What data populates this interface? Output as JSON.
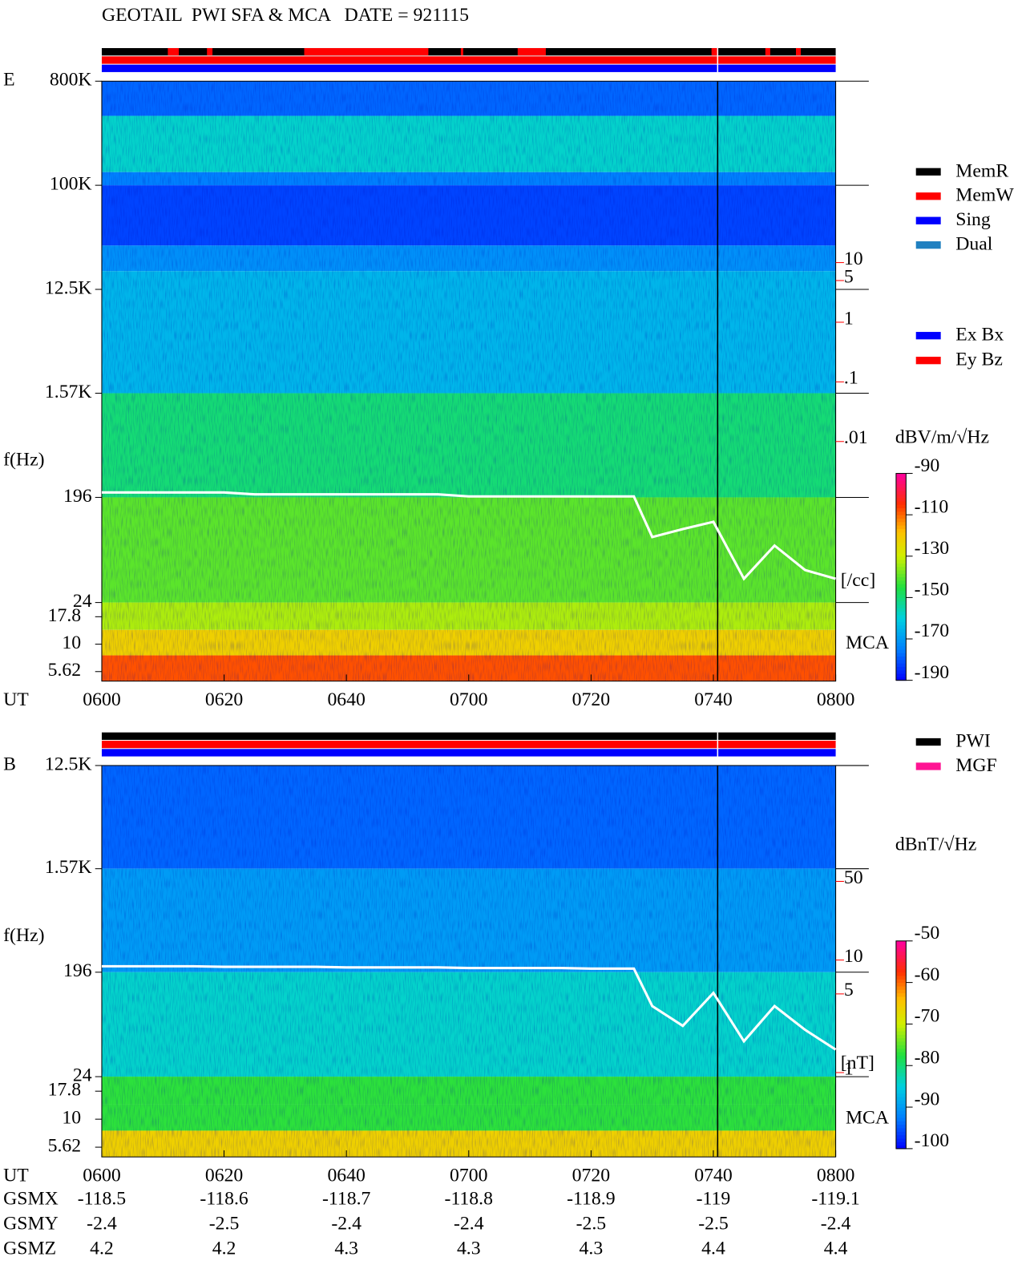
{
  "title": "GEOTAIL  PWI SFA & MCA   DATE = 921115",
  "chart_data": [
    {
      "type": "spectrogram",
      "panel_label": "E",
      "ylabel": "f(Hz)",
      "xlabel": "UT",
      "xlim": [
        360,
        480
      ],
      "xticks": [
        {
          "value": 360,
          "label": "0600"
        },
        {
          "value": 380,
          "label": "0620"
        },
        {
          "value": 400,
          "label": "0640"
        },
        {
          "value": 420,
          "label": "0700"
        },
        {
          "value": 440,
          "label": "0720"
        },
        {
          "value": 460,
          "label": "0740"
        },
        {
          "value": 480,
          "label": "0800"
        }
      ],
      "log_y": true,
      "ylim": [
        24,
        800000
      ],
      "yticks": [
        {
          "value": 800000,
          "label": "800K"
        },
        {
          "value": 100000,
          "label": "100K"
        },
        {
          "value": 12500,
          "label": "12.5K"
        },
        {
          "value": 1570,
          "label": "1.57K"
        },
        196,
        24
      ],
      "mca_label": "MCA",
      "mca_ylim": [
        4.6,
        24
      ],
      "mca_yticks": [
        17.8,
        10,
        5.62
      ],
      "bands": [
        {
          "from": 400000,
          "to": 800000,
          "level": -178
        },
        {
          "from": 130000,
          "to": 400000,
          "level": -158
        },
        {
          "from": 100000,
          "to": 130000,
          "level": -175
        },
        {
          "from": 30000,
          "to": 100000,
          "level": -182
        },
        {
          "from": 18000,
          "to": 30000,
          "level": -172
        },
        {
          "from": 1570,
          "to": 18000,
          "level": -165
        },
        {
          "from": 196,
          "to": 1570,
          "level": -150
        },
        {
          "from": 24,
          "to": 196,
          "level": -140
        }
      ],
      "mca_bands": [
        {
          "from": 13.5,
          "to": 24,
          "level": -133
        },
        {
          "from": 7.9,
          "to": 13.5,
          "level": -122
        },
        {
          "from": 4.6,
          "to": 7.9,
          "level": -108
        }
      ],
      "clim": [
        -190,
        -90
      ],
      "cticks": [
        -90,
        -110,
        -130,
        -150,
        -170,
        -190
      ],
      "colorbar_label": "dBV/m/√Hz",
      "y2lim": [
        2e-05,
        11000
      ],
      "y2ticks": [
        10,
        5,
        1,
        {
          "value": 0.1,
          "label": ".1"
        },
        {
          "value": 0.01,
          "label": ".01"
        }
      ],
      "y2label": "[/cc]",
      "y2color": "#ff0000",
      "line": {
        "color": "#ffffff",
        "x": [
          360,
          365,
          370,
          375,
          380,
          385,
          390,
          395,
          400,
          405,
          410,
          415,
          420,
          425,
          430,
          435,
          440,
          445,
          447,
          450,
          455,
          460,
          465,
          470,
          475,
          480
        ],
        "values": [
          0.0014,
          0.0014,
          0.0014,
          0.0014,
          0.0014,
          0.0013,
          0.0013,
          0.0013,
          0.0013,
          0.0013,
          0.0013,
          0.0013,
          0.0012,
          0.0012,
          0.0012,
          0.0012,
          0.0012,
          0.0012,
          0.0012,
          0.00025,
          0.00034,
          0.00045,
          5e-05,
          0.00018,
          7e-05,
          5e-05
        ]
      },
      "vline": 460.7,
      "status_bars": [
        [
          {
            "start": 360,
            "end": 480,
            "color": "#000000"
          },
          {
            "start": 370.8,
            "end": 372.6,
            "color": "#ff0000"
          },
          {
            "start": 377.2,
            "end": 378.1,
            "color": "#ff0000"
          },
          {
            "start": 393.1,
            "end": 413.4,
            "color": "#ff0000"
          },
          {
            "start": 418.7,
            "end": 419.1,
            "color": "#ff0000"
          },
          {
            "start": 428.0,
            "end": 432.6,
            "color": "#ff0000"
          },
          {
            "start": 459.7,
            "end": 460.8,
            "color": "#ff0000"
          },
          {
            "start": 468.5,
            "end": 469.3,
            "color": "#ff0000"
          },
          {
            "start": 473.5,
            "end": 474.3,
            "color": "#ff0000"
          }
        ],
        [
          {
            "start": 360,
            "end": 480,
            "color": "#ff0000"
          }
        ],
        [
          {
            "start": 360,
            "end": 480,
            "color": "#0000ff"
          }
        ]
      ],
      "legend": [
        {
          "name": "MemR",
          "color": "#000000"
        },
        {
          "name": "MemW",
          "color": "#ff0000"
        },
        {
          "name": "Sing",
          "color": "#0000ff"
        },
        {
          "name": "Dual",
          "color": "#2080c0"
        }
      ],
      "legend2": [
        {
          "name": "Ex Bx",
          "color": "#0000ff"
        },
        {
          "name": "Ey Bz",
          "color": "#ff0000"
        }
      ]
    },
    {
      "type": "spectrogram",
      "panel_label": "B",
      "ylabel": "f(Hz)",
      "xlabel": "UT",
      "xlim": [
        360,
        480
      ],
      "xticks": [
        {
          "value": 360,
          "label": "0600"
        },
        {
          "value": 380,
          "label": "0620"
        },
        {
          "value": 400,
          "label": "0640"
        },
        {
          "value": 420,
          "label": "0700"
        },
        {
          "value": 440,
          "label": "0720"
        },
        {
          "value": 460,
          "label": "0740"
        },
        {
          "value": 480,
          "label": "0800"
        }
      ],
      "log_y": true,
      "ylim": [
        24,
        12500
      ],
      "yticks": [
        {
          "value": 12500,
          "label": "12.5K"
        },
        {
          "value": 1570,
          "label": "1.57K"
        },
        196,
        24
      ],
      "mca_label": "MCA",
      "mca_ylim": [
        4.6,
        24
      ],
      "mca_yticks": [
        17.8,
        10,
        5.62
      ],
      "bands": [
        {
          "from": 1570,
          "to": 12500,
          "level": -94
        },
        {
          "from": 196,
          "to": 1570,
          "level": -90
        },
        {
          "from": 24,
          "to": 196,
          "level": -84
        }
      ],
      "mca_bands": [
        {
          "from": 13.5,
          "to": 24,
          "level": -77
        },
        {
          "from": 7.9,
          "to": 13.5,
          "level": -77
        },
        {
          "from": 4.6,
          "to": 7.9,
          "level": -66
        }
      ],
      "clim": [
        -100,
        -50
      ],
      "cticks": [
        -50,
        -60,
        -70,
        -80,
        -90,
        -100
      ],
      "colorbar_label": "dBnT/√Hz",
      "y2lim": [
        0.92,
        535
      ],
      "y2ticks": [
        50,
        10,
        5,
        1
      ],
      "y2label": "[nT]",
      "y2color": "#ff0000",
      "line": {
        "color": "#ffffff",
        "x": [
          360,
          365,
          370,
          375,
          380,
          385,
          390,
          395,
          400,
          405,
          410,
          415,
          420,
          425,
          430,
          435,
          440,
          445,
          447,
          450,
          455,
          460,
          465,
          470,
          475,
          480
        ],
        "values": [
          8.8,
          8.8,
          8.8,
          8.8,
          8.7,
          8.7,
          8.7,
          8.7,
          8.6,
          8.6,
          8.6,
          8.6,
          8.5,
          8.5,
          8.5,
          8.5,
          8.4,
          8.4,
          8.4,
          3.9,
          2.6,
          5.1,
          1.9,
          3.9,
          2.4,
          1.6
        ]
      },
      "vline": 460.7,
      "status_bars": [
        [
          {
            "start": 360,
            "end": 480,
            "color": "#000000"
          }
        ],
        [
          {
            "start": 360,
            "end": 480,
            "color": "#ff0000"
          }
        ],
        [
          {
            "start": 360,
            "end": 480,
            "color": "#0000ff"
          }
        ]
      ],
      "legend": [
        {
          "name": "PWI",
          "color": "#000000"
        },
        {
          "name": "MGF",
          "color": "#ff1493"
        }
      ],
      "orbit": {
        "label": "UT",
        "rows": [
          {
            "name": "GSMX",
            "values": [
              -118.5,
              -118.6,
              -118.7,
              -118.8,
              -118.9,
              -119.0,
              -119.1
            ]
          },
          {
            "name": "GSMY",
            "values": [
              -2.4,
              -2.5,
              -2.4,
              -2.4,
              -2.5,
              -2.5,
              -2.4
            ]
          },
          {
            "name": "GSMZ",
            "values": [
              4.2,
              4.2,
              4.3,
              4.3,
              4.3,
              4.4,
              4.4
            ]
          }
        ]
      }
    }
  ]
}
